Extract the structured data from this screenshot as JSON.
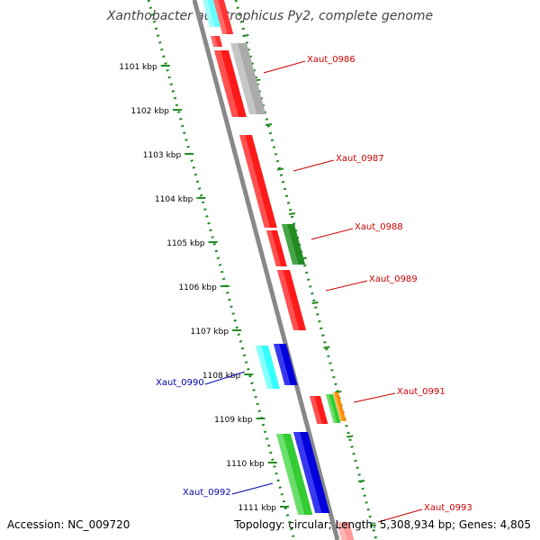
{
  "title": "Xanthobacter autotrophicus Py2, complete genome",
  "footer": {
    "accession": "Accession: NC_009720",
    "summary": "Topology: circular; Length: 5,308,934 bp; Genes: 4,805"
  },
  "kbp_ticks": [
    "1101 kbp",
    "1102 kbp",
    "1103 kbp",
    "1104 kbp",
    "1105 kbp",
    "1106 kbp",
    "1107 kbp",
    "1108 kbp",
    "1109 kbp",
    "1110 kbp",
    "1111 kbp"
  ],
  "colors": {
    "label_forward": "#cc0000",
    "label_reverse": "#0000aa",
    "ruler": "#228b22",
    "backbone": "#888888"
  },
  "gene_labels": [
    {
      "name": "Xaut_0986",
      "strand": "forward"
    },
    {
      "name": "Xaut_0987",
      "strand": "forward"
    },
    {
      "name": "Xaut_0988",
      "strand": "forward"
    },
    {
      "name": "Xaut_0989",
      "strand": "forward"
    },
    {
      "name": "Xaut_0990",
      "strand": "reverse"
    },
    {
      "name": "Xaut_0991",
      "strand": "forward"
    },
    {
      "name": "Xaut_0992",
      "strand": "reverse"
    },
    {
      "name": "Xaut_0993",
      "strand": "forward"
    }
  ]
}
